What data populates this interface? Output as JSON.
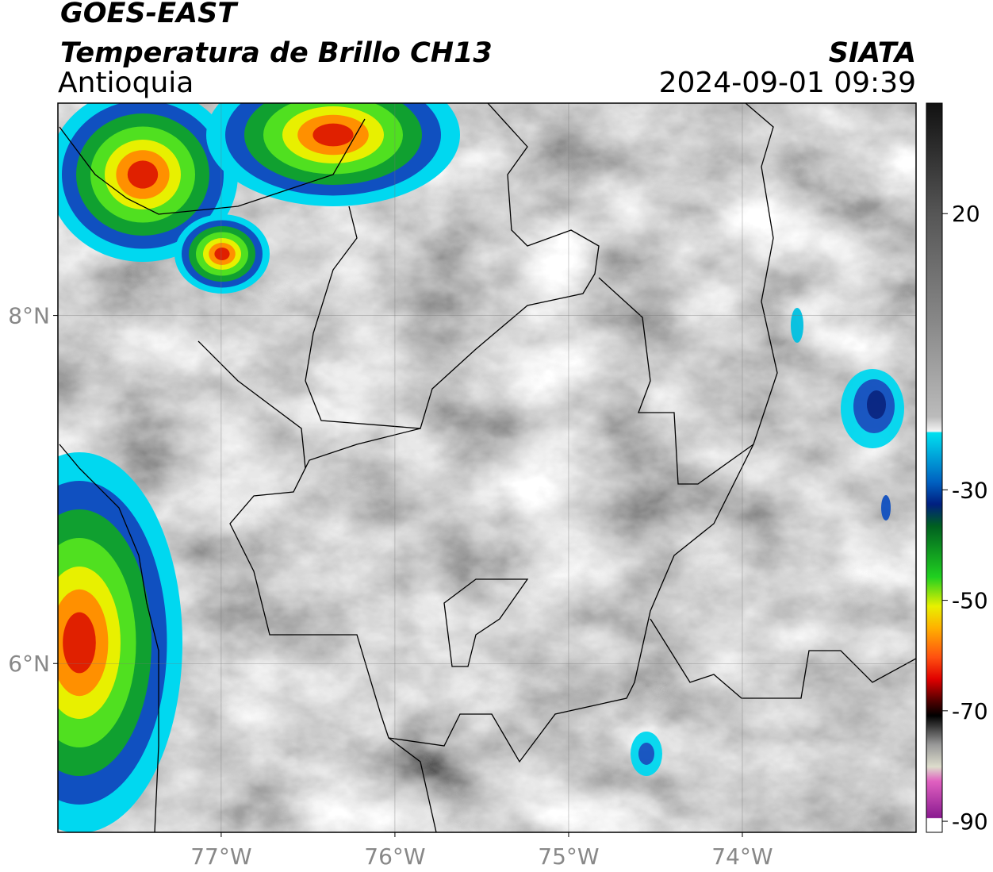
{
  "header": {
    "title": "GOES-EAST",
    "subtitle": "Temperatura de Brillo CH13",
    "region": "Antioquia",
    "source": "SIATA",
    "timestamp": "2024-09-01 09:39"
  },
  "map": {
    "xlim": [
      -77.94,
      -73.0
    ],
    "ylim": [
      5.03,
      9.22
    ],
    "xticks": [
      {
        "value": -77,
        "label": "77°W"
      },
      {
        "value": -76,
        "label": "76°W"
      },
      {
        "value": -75,
        "label": "75°W"
      },
      {
        "value": -74,
        "label": "74°W"
      }
    ],
    "yticks": [
      {
        "value": 8,
        "label": "8°N"
      },
      {
        "value": 6,
        "label": "6°N"
      }
    ]
  },
  "colorbar": {
    "lim": [
      -92,
      40
    ],
    "ticks": [
      20,
      -30,
      -50,
      -70,
      -90
    ]
  }
}
